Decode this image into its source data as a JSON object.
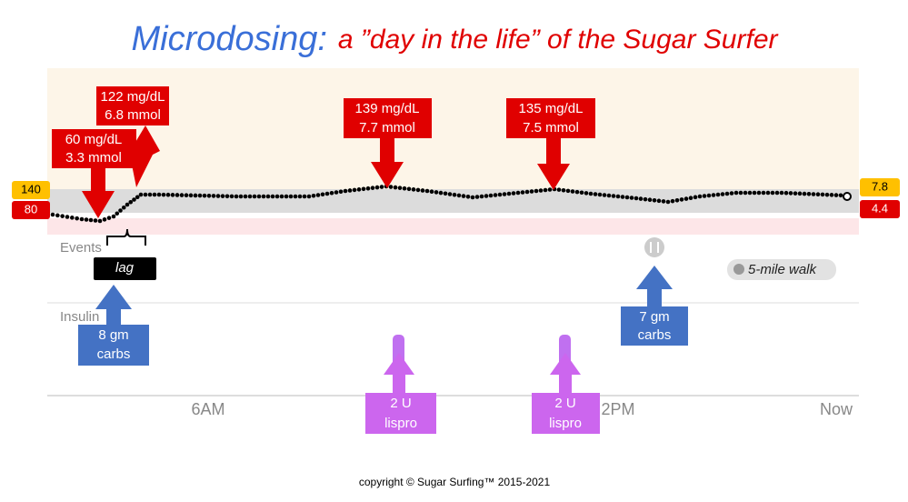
{
  "title": {
    "lead": "Microdosing:",
    "rest": "a ”day in the life” of the Sugar Surfer"
  },
  "range_labels": {
    "left_high": "140",
    "left_low": "80",
    "right_high": "7.8",
    "right_low": "4.4"
  },
  "rows": {
    "events": "Events",
    "insulin": "Insulin"
  },
  "time_labels": [
    "6AM",
    "2PM",
    "Now"
  ],
  "glucose_callouts": [
    {
      "line1": "60 mg/dL",
      "line2": "3.3 mmol"
    },
    {
      "line1": "122 mg/dL",
      "line2": "6.8 mmol"
    },
    {
      "line1": "139 mg/dL",
      "line2": "7.7 mmol"
    },
    {
      "line1": "135 mg/dL",
      "line2": "7.5 mmol"
    }
  ],
  "lag": "lag",
  "carbs": [
    {
      "line1": "8 gm",
      "line2": "carbs"
    },
    {
      "line1": "7 gm",
      "line2": "carbs"
    }
  ],
  "insulin_doses": [
    {
      "line1": "2 U",
      "line2": "lispro"
    },
    {
      "line1": "2 U",
      "line2": "lispro"
    }
  ],
  "activity": "5-mile walk",
  "copyright": "copyright © Sugar Surfing™ 2015-2021"
}
